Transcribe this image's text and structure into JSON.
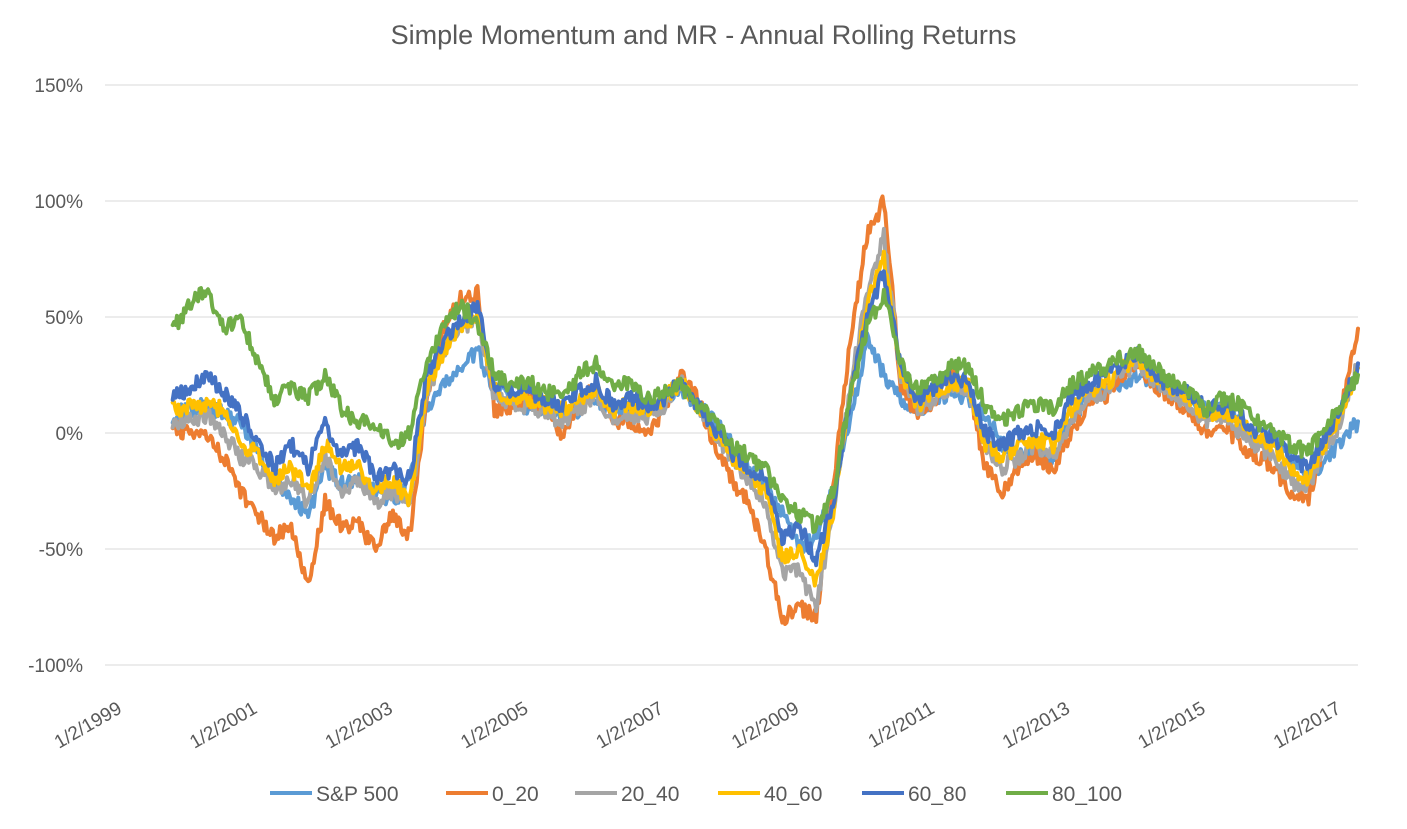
{
  "chart_data": {
    "type": "line",
    "title": "Simple Momentum and MR - Annual Rolling Returns",
    "xlabel": "",
    "ylabel": "",
    "ylim": [
      -100,
      150
    ],
    "y_ticks": [
      "150%",
      "100%",
      "50%",
      "0%",
      "-50%",
      "-100%"
    ],
    "y_tick_values": [
      150,
      100,
      50,
      0,
      -50,
      -100
    ],
    "x_ticks": [
      "1/2/1999",
      "1/2/2001",
      "1/2/2003",
      "1/2/2005",
      "1/2/2007",
      "1/2/2009",
      "1/2/2011",
      "1/2/2013",
      "1/2/2015",
      "1/2/2017"
    ],
    "x_tick_values": [
      1999.0,
      2001.0,
      2003.0,
      2005.0,
      2007.0,
      2009.0,
      2011.0,
      2013.0,
      2015.0,
      2017.0
    ],
    "xlim": [
      1999.0,
      2017.5
    ],
    "grid": true,
    "legend_position": "bottom",
    "x": [
      2000.0,
      2000.25,
      2000.5,
      2000.75,
      2001.0,
      2001.25,
      2001.5,
      2001.75,
      2002.0,
      2002.25,
      2002.5,
      2002.75,
      2003.0,
      2003.25,
      2003.5,
      2003.75,
      2004.0,
      2004.25,
      2004.5,
      2004.75,
      2005.0,
      2005.25,
      2005.5,
      2005.75,
      2006.0,
      2006.25,
      2006.5,
      2006.75,
      2007.0,
      2007.25,
      2007.5,
      2007.75,
      2008.0,
      2008.25,
      2008.5,
      2008.75,
      2009.0,
      2009.25,
      2009.5,
      2009.75,
      2010.0,
      2010.25,
      2010.5,
      2010.75,
      2011.0,
      2011.25,
      2011.5,
      2011.75,
      2012.0,
      2012.25,
      2012.5,
      2012.75,
      2013.0,
      2013.25,
      2013.5,
      2013.75,
      2014.0,
      2014.25,
      2014.5,
      2014.75,
      2015.0,
      2015.25,
      2015.5,
      2015.75,
      2016.0,
      2016.25,
      2016.5,
      2016.75,
      2017.0,
      2017.25,
      2017.5
    ],
    "series": [
      {
        "name": "S&P 500",
        "color": "#5B9BD5",
        "values": [
          8,
          10,
          12,
          8,
          5,
          -8,
          -22,
          -28,
          -35,
          -15,
          -22,
          -20,
          -25,
          -30,
          -20,
          10,
          20,
          28,
          35,
          18,
          15,
          10,
          12,
          8,
          10,
          15,
          8,
          10,
          10,
          12,
          20,
          12,
          5,
          -5,
          -15,
          -22,
          -35,
          -50,
          -45,
          -25,
          5,
          40,
          25,
          15,
          10,
          12,
          18,
          15,
          8,
          -5,
          -10,
          -8,
          -12,
          5,
          15,
          18,
          22,
          25,
          20,
          18,
          15,
          10,
          10,
          5,
          -5,
          0,
          -10,
          -20,
          -12,
          -5,
          5
        ]
      },
      {
        "name": "0_20",
        "color": "#ED7D31",
        "values": [
          2,
          0,
          -2,
          -10,
          -25,
          -35,
          -45,
          -40,
          -65,
          -30,
          -40,
          -40,
          -50,
          -35,
          -45,
          15,
          45,
          58,
          60,
          10,
          12,
          15,
          10,
          0,
          12,
          20,
          5,
          5,
          0,
          10,
          25,
          15,
          -5,
          -20,
          -30,
          -50,
          -80,
          -75,
          -80,
          -25,
          40,
          85,
          100,
          20,
          8,
          15,
          25,
          20,
          -15,
          -25,
          -15,
          -10,
          -15,
          0,
          10,
          15,
          25,
          30,
          20,
          15,
          10,
          0,
          5,
          -5,
          -10,
          -15,
          -25,
          -30,
          -5,
          10,
          45
        ]
      },
      {
        "name": "20_40",
        "color": "#A5A5A5",
        "values": [
          5,
          5,
          8,
          0,
          -10,
          -15,
          -25,
          -20,
          -30,
          -10,
          -25,
          -20,
          -30,
          -25,
          -30,
          15,
          35,
          45,
          50,
          15,
          12,
          12,
          8,
          5,
          10,
          15,
          5,
          8,
          5,
          12,
          22,
          12,
          0,
          -10,
          -20,
          -30,
          -60,
          -60,
          -75,
          -35,
          20,
          60,
          85,
          25,
          10,
          15,
          20,
          18,
          -5,
          -15,
          -10,
          -5,
          -10,
          5,
          15,
          18,
          25,
          30,
          22,
          18,
          12,
          5,
          8,
          0,
          -5,
          -10,
          -20,
          -25,
          -8,
          5,
          30
        ]
      },
      {
        "name": "40_60",
        "color": "#FFC000",
        "values": [
          10,
          12,
          12,
          10,
          -5,
          -8,
          -20,
          -15,
          -25,
          -5,
          -15,
          -15,
          -25,
          -20,
          -30,
          20,
          35,
          45,
          50,
          18,
          15,
          15,
          12,
          10,
          15,
          20,
          10,
          12,
          10,
          15,
          22,
          12,
          0,
          -10,
          -18,
          -25,
          -55,
          -50,
          -65,
          -35,
          15,
          55,
          75,
          25,
          12,
          18,
          22,
          20,
          -5,
          -10,
          -5,
          -3,
          -5,
          10,
          18,
          20,
          28,
          32,
          25,
          20,
          15,
          8,
          10,
          5,
          -3,
          -5,
          -15,
          -20,
          -5,
          8,
          28
        ]
      },
      {
        "name": "60_80",
        "color": "#4472C4",
        "values": [
          15,
          20,
          25,
          18,
          8,
          -2,
          -15,
          -5,
          -15,
          5,
          -10,
          -5,
          -20,
          -15,
          -20,
          25,
          40,
          48,
          55,
          22,
          18,
          18,
          15,
          12,
          18,
          22,
          12,
          15,
          12,
          15,
          22,
          12,
          2,
          -8,
          -15,
          -20,
          -45,
          -40,
          -55,
          -30,
          15,
          50,
          70,
          28,
          15,
          20,
          25,
          22,
          0,
          -5,
          0,
          2,
          0,
          15,
          20,
          25,
          30,
          35,
          25,
          20,
          18,
          10,
          12,
          8,
          0,
          -2,
          -10,
          -15,
          -2,
          10,
          30
        ]
      },
      {
        "name": "80_100",
        "color": "#70AD47",
        "values": [
          45,
          55,
          62,
          45,
          50,
          30,
          15,
          20,
          15,
          25,
          10,
          5,
          5,
          -5,
          0,
          30,
          45,
          55,
          48,
          25,
          20,
          22,
          18,
          15,
          25,
          30,
          20,
          22,
          15,
          18,
          20,
          12,
          5,
          -5,
          -10,
          -15,
          -30,
          -35,
          -40,
          -25,
          15,
          45,
          60,
          30,
          18,
          22,
          30,
          28,
          12,
          5,
          10,
          12,
          10,
          20,
          25,
          28,
          32,
          35,
          28,
          22,
          18,
          10,
          15,
          12,
          5,
          0,
          -5,
          -8,
          2,
          12,
          25
        ]
      }
    ]
  }
}
